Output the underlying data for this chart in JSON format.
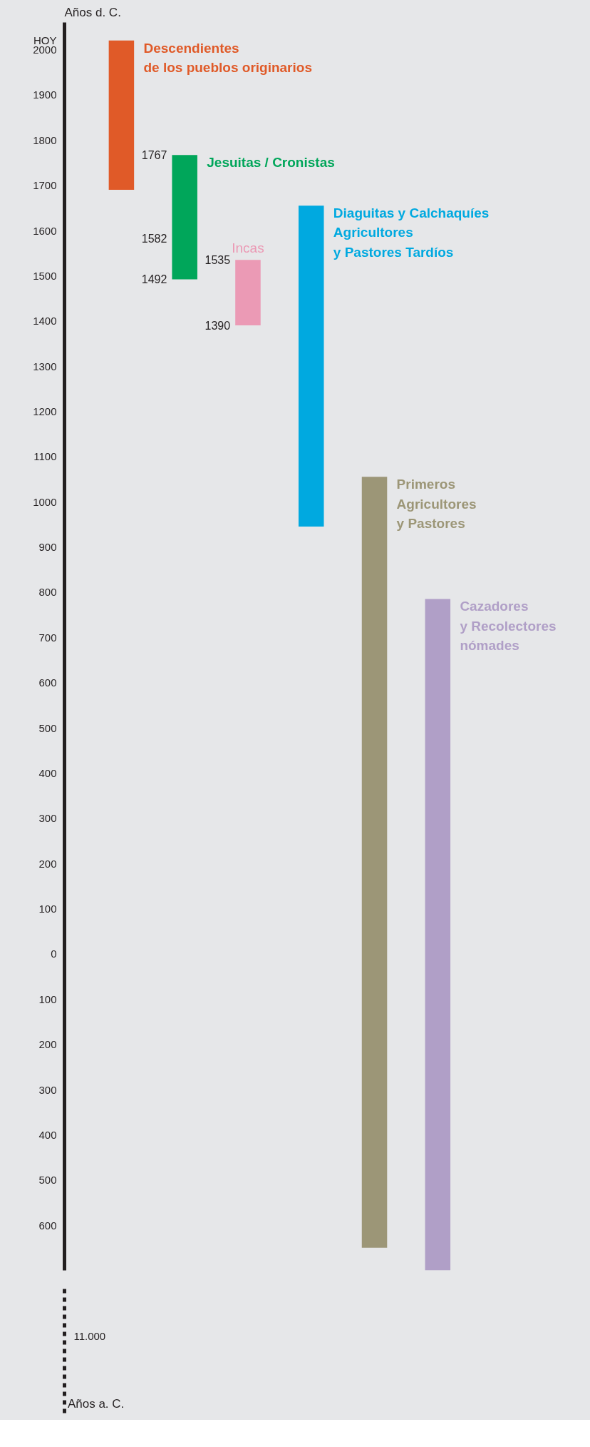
{
  "chart_data": [
    {
      "type": "bar",
      "title": "Años d. C.",
      "categories": [
        null,
        null,
        null,
        null,
        null,
        null
      ],
      "base": [
        1690,
        1492,
        1390,
        945,
        -650,
        -700
      ],
      "values": [
        330,
        275,
        145,
        710,
        1705,
        1485
      ],
      "colors": [
        "#e05a28",
        "#00a65a",
        "#eb9ab5",
        "#00a9e0",
        "#9c9677",
        "#b09fc7"
      ],
      "ylim": [
        -700,
        2060
      ],
      "yticks": [
        {
          "value": -600,
          "label": "600"
        },
        {
          "value": -500,
          "label": "500"
        },
        {
          "value": -400,
          "label": "400"
        },
        {
          "value": -300,
          "label": "300"
        },
        {
          "value": -200,
          "label": "200"
        },
        {
          "value": -100,
          "label": "100"
        },
        0,
        100,
        200,
        300,
        400,
        500,
        600,
        700,
        800,
        900,
        1000,
        1100,
        1200,
        1300,
        1400,
        1500,
        1600,
        1700,
        1800,
        1900,
        2000,
        {
          "value": 2020,
          "label": "HOY"
        }
      ],
      "annotations": [
        "Descendientes\nde los pueblos originarios",
        "Jesuitas / Cronistas",
        "1767",
        "1582",
        "1492",
        "Incas",
        "1535",
        "1390",
        "Diaguitas y Calchaquíes\nAgricultores\ny Pastores Tardíos",
        "Primeros\nAgricultores\ny Pastores",
        "Cazadores\ny Recolectores\nnómades"
      ]
    },
    {
      "type": "other",
      "annotations": [
        "11.000",
        "Años a. C."
      ]
    }
  ]
}
